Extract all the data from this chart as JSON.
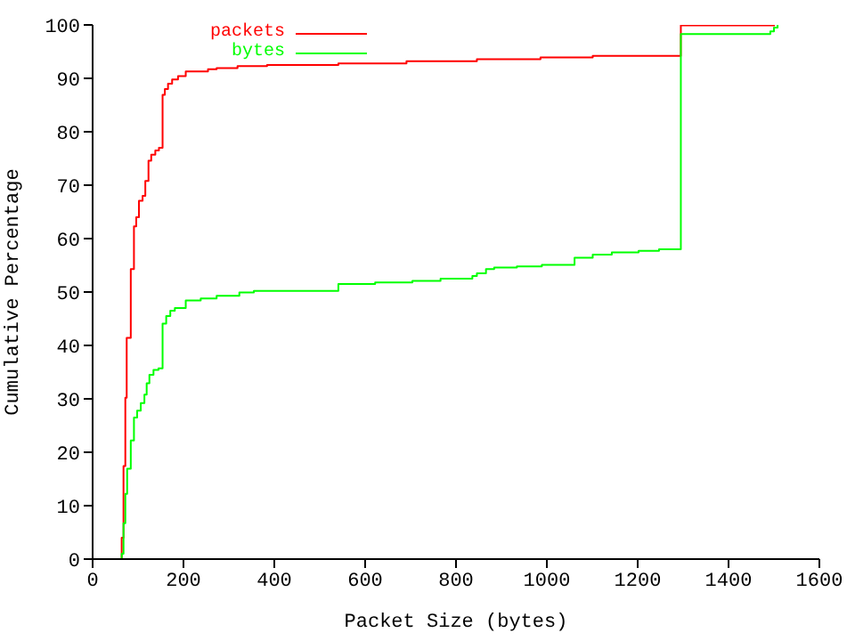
{
  "chart_data": {
    "type": "step",
    "xlabel": "Packet Size (bytes)",
    "ylabel": "Cumulative Percentage",
    "xlim": [
      0,
      1600
    ],
    "xticks": [
      0,
      200,
      400,
      600,
      800,
      1000,
      1200,
      1400,
      1600
    ],
    "ylim": [
      0,
      100
    ],
    "yticks": [
      0,
      10,
      20,
      30,
      40,
      50,
      60,
      70,
      80,
      90,
      100
    ],
    "grid": false,
    "legend": "top left",
    "marker": "none",
    "line_style": "solid",
    "series": [
      {
        "name": "packets",
        "color": "#ff0000",
        "x": [
          60,
          64,
          68,
          72,
          75,
          84,
          91,
          96,
          102,
          110,
          116,
          123,
          129,
          138,
          146,
          154,
          159,
          166,
          175,
          188,
          205,
          254,
          273,
          319,
          384,
          541,
          691,
          846,
          986,
          1101,
          1295,
          1502
        ],
        "values": [
          0,
          4,
          17.4,
          30.2,
          41.4,
          54.3,
          62.3,
          64,
          67.1,
          68,
          70.8,
          74.6,
          75.7,
          76.5,
          77,
          86.9,
          88,
          89,
          89.8,
          90.4,
          91.3,
          91.7,
          91.9,
          92.3,
          92.5,
          92.8,
          93.2,
          93.6,
          93.9,
          94.2,
          99.9,
          99.9
        ]
      },
      {
        "name": "bytes",
        "color": "#00ff00",
        "x": [
          60,
          64,
          68,
          72,
          76,
          84,
          91,
          98,
          106,
          114,
          119,
          125,
          134,
          145,
          154,
          162,
          171,
          181,
          205,
          238,
          273,
          323,
          355,
          541,
          622,
          704,
          766,
          836,
          846,
          866,
          884,
          934,
          989,
          1061,
          1101,
          1143,
          1202,
          1247,
          1295,
          1492,
          1500,
          1508
        ],
        "values": [
          0,
          1,
          6.7,
          12.2,
          16.9,
          22.2,
          26.5,
          27.8,
          29.2,
          30.8,
          32.9,
          34.5,
          35.4,
          35.7,
          44.1,
          45.5,
          46.5,
          47,
          48.4,
          48.8,
          49.3,
          49.9,
          50.2,
          51.5,
          51.8,
          52.1,
          52.5,
          53,
          53.5,
          54.3,
          54.6,
          54.8,
          55.1,
          56.4,
          57,
          57.4,
          57.7,
          58,
          98.3,
          98.8,
          99.5,
          100
        ]
      }
    ]
  }
}
